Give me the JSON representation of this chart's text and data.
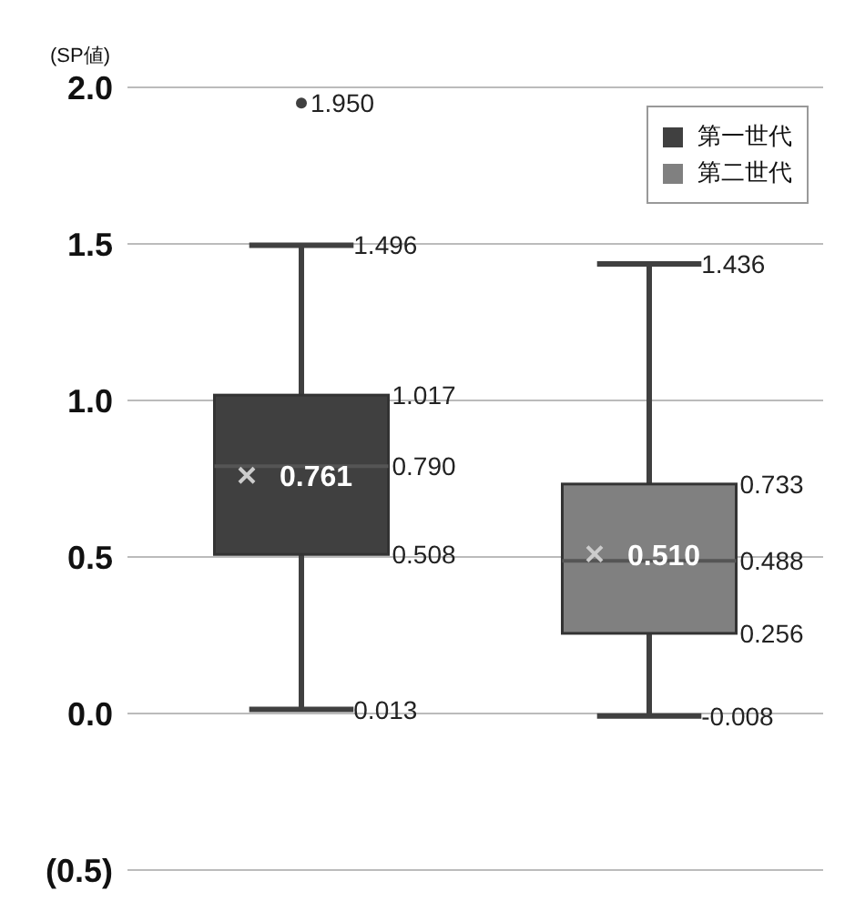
{
  "chart_data": {
    "type": "box",
    "ylabel": "(SP値)",
    "categories": [
      null,
      null
    ],
    "series": [
      {
        "name": "第一世代",
        "color": "#404040",
        "boxes": [
          {
            "low": 0.013,
            "q1": 0.508,
            "median": 0.79,
            "q3": 1.017,
            "high": 1.496,
            "mean": 0.761,
            "outliers": [
              1.95
            ]
          },
          null
        ]
      },
      {
        "name": "第二世代",
        "color": "#808080",
        "boxes": [
          null,
          {
            "low": -0.008,
            "q1": 0.256,
            "median": 0.488,
            "q3": 0.733,
            "high": 1.436,
            "mean": 0.51
          }
        ]
      }
    ],
    "ylim": [
      -0.5,
      2.0
    ],
    "yticks": [
      {
        "value": -0.5,
        "label": "(0.5)"
      },
      {
        "value": 0,
        "label": "0.0"
      },
      {
        "value": 0.5,
        "label": "0.5"
      },
      {
        "value": 1,
        "label": "1.0"
      },
      {
        "value": 1.5,
        "label": "1.5"
      },
      {
        "value": 2,
        "label": "2.0"
      }
    ],
    "annotations": [
      "1.950",
      "1.496",
      "1.017",
      "0.790",
      "0.761",
      "0.508",
      "0.013",
      "1.436",
      "0.733",
      "0.488",
      "0.510",
      "0.256",
      "-0.008"
    ],
    "grid": "y",
    "legend": "top right"
  }
}
